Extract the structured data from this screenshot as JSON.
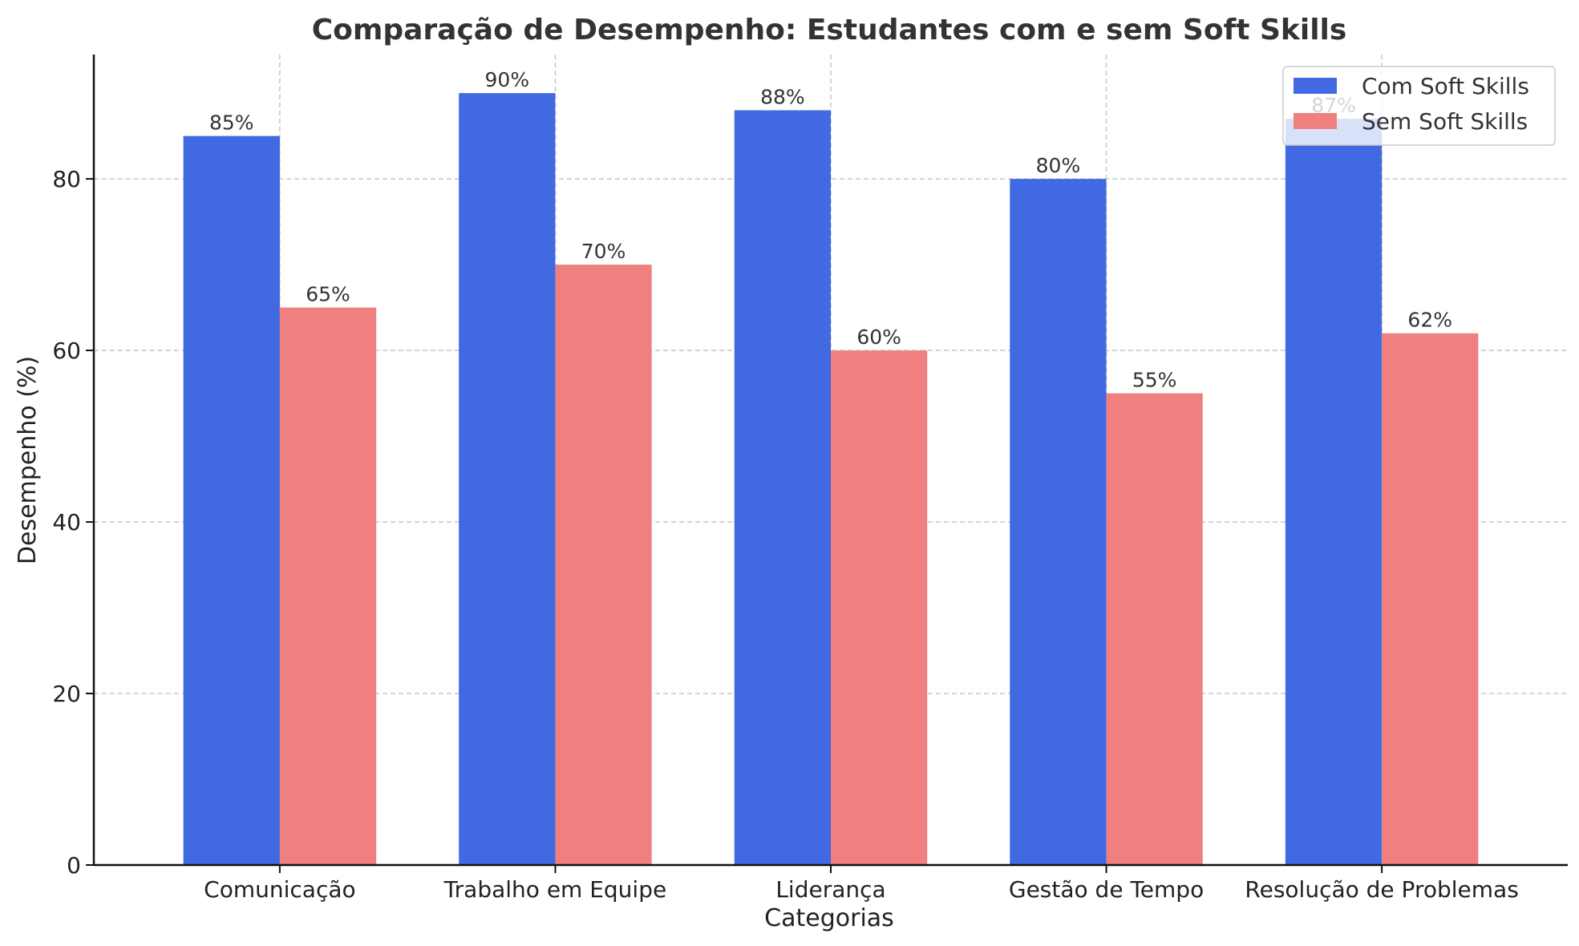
{
  "chart_data": {
    "type": "bar",
    "title": "Comparação de Desempenho: Estudantes com e sem Soft Skills",
    "xlabel": "Categorias",
    "ylabel": "Desempenho (%)",
    "categories": [
      "Comunicação",
      "Trabalho em Equipe",
      "Liderança",
      "Gestão de Tempo",
      "Resolução de Problemas"
    ],
    "series": [
      {
        "name": "Com Soft Skills",
        "color": "#4169e1",
        "values": [
          85,
          90,
          88,
          80,
          87
        ],
        "labels": [
          "85%",
          "90%",
          "88%",
          "80%",
          "87%"
        ]
      },
      {
        "name": "Sem Soft Skills",
        "color": "#f08080",
        "values": [
          65,
          70,
          60,
          55,
          62
        ],
        "labels": [
          "65%",
          "70%",
          "60%",
          "55%",
          "62%"
        ]
      }
    ],
    "ylim": [
      0,
      94.5
    ],
    "yticks": [
      0,
      20,
      40,
      60,
      80
    ],
    "grid": true,
    "legend_position": "top-right"
  }
}
